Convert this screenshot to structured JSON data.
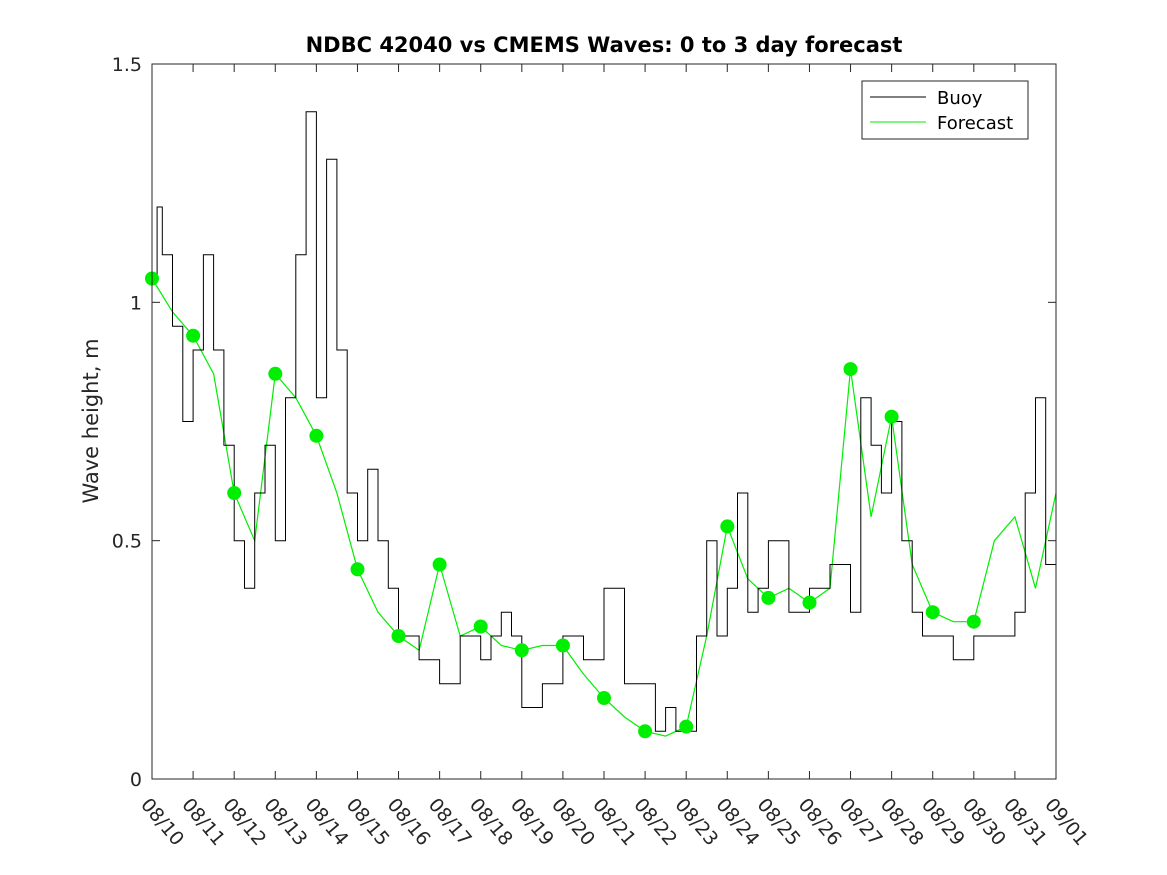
{
  "chart_data": {
    "type": "line",
    "title": "NDBC 42040 vs CMEMS Waves: 0 to 3 day forecast",
    "xlabel": "",
    "ylabel": "Wave height, m",
    "xlim": [
      "08/10",
      "09/01"
    ],
    "ylim": [
      0,
      1.5
    ],
    "x_tick_labels": [
      "08/10",
      "08/11",
      "08/12",
      "08/13",
      "08/14",
      "08/15",
      "08/16",
      "08/17",
      "08/18",
      "08/19",
      "08/20",
      "08/21",
      "08/22",
      "08/23",
      "08/24",
      "08/25",
      "08/26",
      "08/27",
      "08/28",
      "08/29",
      "08/30",
      "08/31",
      "09/01"
    ],
    "y_ticks": [
      0,
      0.5,
      1,
      1.5
    ],
    "y_tick_labels": [
      "0",
      "0.5",
      "1",
      "1.5"
    ],
    "grid": false,
    "legend_position": "top-right",
    "colors": {
      "buoy": "#000000",
      "forecast": "#00ee00",
      "axis": "#262626"
    },
    "series": [
      {
        "name": "Buoy",
        "x": [
          "08/10 00:00",
          "08/10 03:00",
          "08/10 06:00",
          "08/10 12:00",
          "08/10 18:00",
          "08/11 00:00",
          "08/11 06:00",
          "08/11 12:00",
          "08/11 18:00",
          "08/12 00:00",
          "08/12 06:00",
          "08/12 12:00",
          "08/12 18:00",
          "08/13 00:00",
          "08/13 06:00",
          "08/13 12:00",
          "08/13 18:00",
          "08/14 00:00",
          "08/14 06:00",
          "08/14 12:00",
          "08/14 18:00",
          "08/15 00:00",
          "08/15 06:00",
          "08/15 12:00",
          "08/15 18:00",
          "08/16 00:00",
          "08/16 12:00",
          "08/17 00:00",
          "08/17 12:00",
          "08/18 00:00",
          "08/18 06:00",
          "08/18 12:00",
          "08/18 18:00",
          "08/19 00:00",
          "08/19 12:00",
          "08/20 00:00",
          "08/20 12:00",
          "08/21 00:00",
          "08/21 12:00",
          "08/22 00:00",
          "08/22 06:00",
          "08/22 12:00",
          "08/22 18:00",
          "08/23 00:00",
          "08/23 06:00",
          "08/23 12:00",
          "08/23 18:00",
          "08/24 00:00",
          "08/24 06:00",
          "08/24 12:00",
          "08/24 18:00",
          "08/25 00:00",
          "08/25 12:00",
          "08/26 00:00",
          "08/26 12:00",
          "08/27 00:00",
          "08/27 06:00",
          "08/27 12:00",
          "08/27 18:00",
          "08/28 00:00",
          "08/28 06:00",
          "08/28 12:00",
          "08/28 18:00",
          "08/29 00:00",
          "08/29 12:00",
          "08/30 00:00",
          "08/30 12:00",
          "08/31 00:00",
          "08/31 06:00",
          "08/31 12:00",
          "08/31 18:00",
          "09/01 00:00"
        ],
        "y": [
          1.05,
          1.2,
          1.1,
          0.95,
          0.75,
          0.9,
          1.1,
          0.9,
          0.7,
          0.5,
          0.4,
          0.6,
          0.7,
          0.5,
          0.8,
          1.1,
          1.4,
          0.8,
          1.3,
          0.9,
          0.6,
          0.5,
          0.65,
          0.5,
          0.4,
          0.3,
          0.25,
          0.2,
          0.3,
          0.25,
          0.3,
          0.35,
          0.3,
          0.15,
          0.2,
          0.3,
          0.25,
          0.4,
          0.2,
          0.2,
          0.1,
          0.15,
          0.1,
          0.1,
          0.3,
          0.5,
          0.3,
          0.4,
          0.6,
          0.35,
          0.4,
          0.5,
          0.35,
          0.4,
          0.45,
          0.35,
          0.8,
          0.7,
          0.6,
          0.75,
          0.5,
          0.35,
          0.3,
          0.3,
          0.25,
          0.3,
          0.3,
          0.35,
          0.6,
          0.8,
          0.45,
          0.5
        ]
      },
      {
        "name": "Forecast",
        "x": [
          "08/10",
          "08/10 12:00",
          "08/11",
          "08/11 12:00",
          "08/12",
          "08/12 12:00",
          "08/13",
          "08/13 12:00",
          "08/14",
          "08/14 12:00",
          "08/15",
          "08/15 12:00",
          "08/16",
          "08/16 12:00",
          "08/17",
          "08/17 12:00",
          "08/18",
          "08/18 12:00",
          "08/19",
          "08/19 12:00",
          "08/20",
          "08/20 12:00",
          "08/21",
          "08/21 12:00",
          "08/22",
          "08/22 12:00",
          "08/23",
          "08/23 12:00",
          "08/24",
          "08/24 12:00",
          "08/25",
          "08/25 12:00",
          "08/26",
          "08/26 12:00",
          "08/27",
          "08/27 12:00",
          "08/28",
          "08/28 12:00",
          "08/29",
          "08/29 12:00",
          "08/30",
          "08/30 12:00",
          "08/31",
          "08/31 12:00",
          "09/01"
        ],
        "y": [
          1.05,
          0.98,
          0.93,
          0.85,
          0.6,
          0.5,
          0.85,
          0.8,
          0.72,
          0.6,
          0.44,
          0.35,
          0.3,
          0.27,
          0.45,
          0.3,
          0.32,
          0.28,
          0.27,
          0.28,
          0.28,
          0.22,
          0.17,
          0.13,
          0.1,
          0.09,
          0.11,
          0.3,
          0.53,
          0.42,
          0.38,
          0.4,
          0.37,
          0.4,
          0.86,
          0.55,
          0.76,
          0.45,
          0.35,
          0.33,
          0.33,
          0.5,
          0.55,
          0.4,
          0.6
        ]
      }
    ],
    "forecast_start_points": {
      "x": [
        "08/10",
        "08/11",
        "08/12",
        "08/13",
        "08/14",
        "08/15",
        "08/16",
        "08/17",
        "08/18",
        "08/19",
        "08/20",
        "08/21",
        "08/22",
        "08/23",
        "08/24",
        "08/25",
        "08/26",
        "08/27",
        "08/28",
        "08/29",
        "08/30"
      ],
      "y": [
        1.05,
        0.93,
        0.6,
        0.85,
        0.72,
        0.44,
        0.3,
        0.45,
        0.32,
        0.27,
        0.28,
        0.17,
        0.1,
        0.11,
        0.53,
        0.38,
        0.37,
        0.86,
        0.76,
        0.35,
        0.33
      ]
    }
  }
}
